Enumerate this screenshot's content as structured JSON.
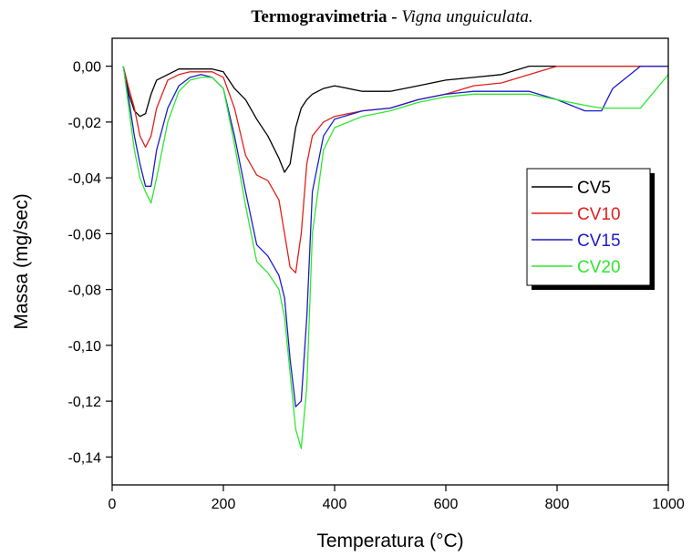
{
  "chart_data": {
    "type": "line",
    "title": "Termogravimetria -",
    "subtitle": "Vigna unguiculata.",
    "x_label": "Temperatura (°C)",
    "y_label": "Massa (mg/sec)",
    "x": [
      20,
      30,
      40,
      50,
      60,
      70,
      80,
      100,
      120,
      140,
      160,
      180,
      200,
      220,
      240,
      260,
      280,
      300,
      310,
      320,
      330,
      340,
      350,
      360,
      380,
      400,
      450,
      500,
      550,
      600,
      650,
      700,
      750,
      800,
      850,
      880,
      900,
      950,
      1000
    ],
    "series": [
      {
        "name": "CV5",
        "color": "#000000",
        "values": [
          0,
          -0.01,
          -0.016,
          -0.018,
          -0.017,
          -0.01,
          -0.005,
          -0.003,
          -0.001,
          -0.001,
          -0.001,
          -0.001,
          -0.002,
          -0.008,
          -0.012,
          -0.019,
          -0.025,
          -0.033,
          -0.038,
          -0.035,
          -0.022,
          -0.015,
          -0.012,
          -0.01,
          -0.008,
          -0.007,
          -0.009,
          -0.009,
          -0.007,
          -0.005,
          -0.004,
          -0.003,
          0,
          0,
          0,
          0,
          0,
          0,
          0
        ]
      },
      {
        "name": "CV10",
        "color": "#e0201b",
        "values": [
          0,
          -0.008,
          -0.015,
          -0.025,
          -0.029,
          -0.025,
          -0.015,
          -0.005,
          -0.003,
          -0.002,
          -0.002,
          -0.002,
          -0.004,
          -0.015,
          -0.032,
          -0.039,
          -0.041,
          -0.048,
          -0.06,
          -0.072,
          -0.074,
          -0.06,
          -0.035,
          -0.025,
          -0.02,
          -0.018,
          -0.016,
          -0.015,
          -0.012,
          -0.01,
          -0.007,
          -0.006,
          -0.003,
          0,
          0,
          0,
          0,
          0,
          0
        ]
      },
      {
        "name": "CV15",
        "color": "#1c1cc8",
        "values": [
          0,
          -0.012,
          -0.025,
          -0.035,
          -0.043,
          -0.043,
          -0.03,
          -0.015,
          -0.007,
          -0.004,
          -0.003,
          -0.004,
          -0.008,
          -0.025,
          -0.045,
          -0.064,
          -0.068,
          -0.075,
          -0.083,
          -0.105,
          -0.122,
          -0.12,
          -0.09,
          -0.045,
          -0.025,
          -0.019,
          -0.016,
          -0.015,
          -0.012,
          -0.01,
          -0.009,
          -0.009,
          -0.009,
          -0.012,
          -0.016,
          -0.016,
          -0.008,
          0,
          0
        ]
      },
      {
        "name": "CV20",
        "color": "#2ee82e",
        "values": [
          0,
          -0.015,
          -0.03,
          -0.04,
          -0.045,
          -0.049,
          -0.04,
          -0.02,
          -0.009,
          -0.005,
          -0.004,
          -0.004,
          -0.008,
          -0.028,
          -0.05,
          -0.07,
          -0.074,
          -0.08,
          -0.09,
          -0.11,
          -0.13,
          -0.137,
          -0.115,
          -0.06,
          -0.03,
          -0.022,
          -0.018,
          -0.016,
          -0.013,
          -0.011,
          -0.01,
          -0.01,
          -0.01,
          -0.012,
          -0.014,
          -0.015,
          -0.015,
          -0.015,
          -0.003
        ]
      }
    ],
    "xlim": [
      0,
      1000
    ],
    "xticks": [
      0,
      200,
      400,
      600,
      800,
      1000
    ],
    "ylim": [
      -0.15,
      0.01
    ],
    "yticks": [
      {
        "value": 0,
        "label": "0,00"
      },
      {
        "value": -0.02,
        "label": "-0,02"
      },
      {
        "value": -0.04,
        "label": "-0,04"
      },
      {
        "value": -0.06,
        "label": "-0,06"
      },
      {
        "value": -0.08,
        "label": "-0,08"
      },
      {
        "value": -0.1,
        "label": "-0,10"
      },
      {
        "value": -0.12,
        "label": "-0,12"
      },
      {
        "value": -0.14,
        "label": "-0,14"
      }
    ],
    "grid": false,
    "legend": "right"
  }
}
